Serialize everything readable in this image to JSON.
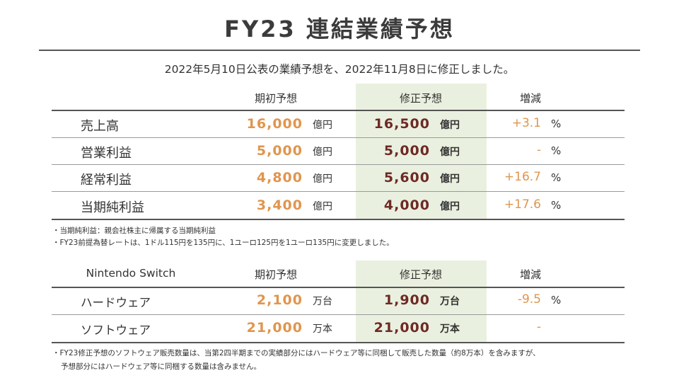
{
  "title": "FY23 連結業績予想",
  "subtitle": "2022年5月10日公表の業績予想を、2022年11月8日に修正しました。",
  "table1": {
    "headers": {
      "initial": "期初予想",
      "revised": "修正予想",
      "change": "増減"
    },
    "rows": [
      {
        "label": "売上高",
        "initial": "16,000",
        "initial_unit": "億円",
        "revised": "16,500",
        "revised_unit": "億円",
        "change": "+3.1",
        "pct": "%"
      },
      {
        "label": "営業利益",
        "initial": "5,000",
        "initial_unit": "億円",
        "revised": "5,000",
        "revised_unit": "億円",
        "change": "-",
        "pct": "%"
      },
      {
        "label": "経常利益",
        "initial": "4,800",
        "initial_unit": "億円",
        "revised": "5,600",
        "revised_unit": "億円",
        "change": "+16.7",
        "pct": "%"
      },
      {
        "label": "当期純利益",
        "initial": "3,400",
        "initial_unit": "億円",
        "revised": "4,000",
        "revised_unit": "億円",
        "change": "+17.6",
        "pct": "%"
      }
    ]
  },
  "notes1": [
    "・当期純利益：親会社株主に帰属する当期純利益",
    "・FY23前提為替レートは、1ドル115円を135円に、1ユーロ125円を1ユーロ135円に変更しました。"
  ],
  "table2": {
    "headers": {
      "product": "Nintendo Switch",
      "initial": "期初予想",
      "revised": "修正予想",
      "change": "増減"
    },
    "rows": [
      {
        "label": "ハードウェア",
        "initial": "2,100",
        "initial_unit": "万台",
        "revised": "1,900",
        "revised_unit": "万台",
        "change": "-9.5",
        "pct": "%"
      },
      {
        "label": "ソフトウェア",
        "initial": "21,000",
        "initial_unit": "万本",
        "revised": "21,000",
        "revised_unit": "万本",
        "change": "-",
        "pct": ""
      }
    ]
  },
  "notes2": [
    "・FY23修正予想のソフトウェア販売数量は、当第2四半期までの実績部分にはハードウェア等に同梱して販売した数量（約8万本）を含みますが、",
    "予想部分にはハードウェア等に同梱する数量は含みません。"
  ],
  "colors": {
    "initial_value": "#e0954e",
    "revised_value": "#6e2a25",
    "revised_highlight": "#eaf0df"
  }
}
